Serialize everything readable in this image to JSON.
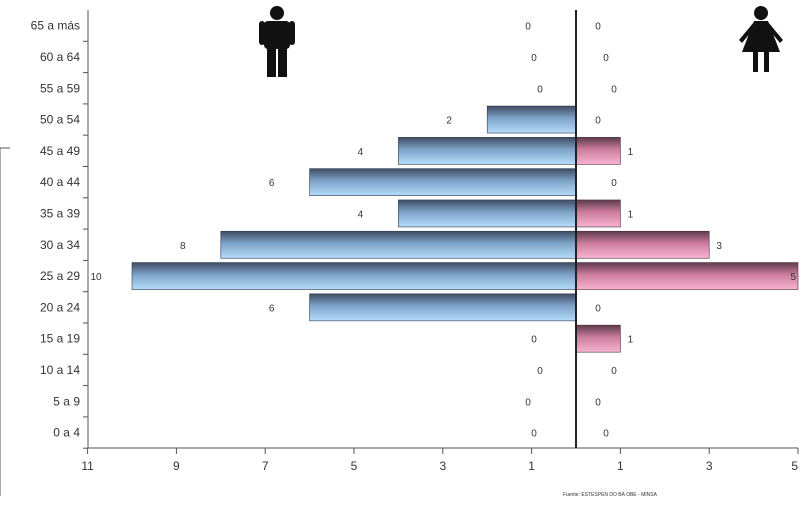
{
  "chart_data": {
    "type": "bar",
    "orientation": "horizontal",
    "categories": [
      "65 a más",
      "60 a 64",
      "55 a 59",
      "50 a 54",
      "45 a 49",
      "40 a 44",
      "35 a 39",
      "30 a 34",
      "25 a 29",
      "20 a 24",
      "15 a 19",
      "10 a 14",
      "5 a 9",
      "0 a 4"
    ],
    "series": [
      {
        "values": [
          0,
          0,
          0,
          2,
          4,
          6,
          4,
          8,
          10,
          6,
          0,
          0,
          0,
          0
        ],
        "color": "#8fb8e0"
      },
      {
        "values": [
          0,
          0,
          0,
          0,
          1,
          0,
          1,
          3,
          5,
          0,
          1,
          0,
          0,
          0
        ],
        "color": "#e38aac"
      }
    ],
    "xticks": [
      "11",
      "9",
      "7",
      "5",
      "3",
      "1",
      "1",
      "3",
      "5"
    ],
    "xlim_left": 11,
    "xlim_right": 5,
    "source_note": "Fuente: ESTESPEN DO BA OBE - MINSA",
    "icons": {
      "left": "male-figure-icon",
      "right": "female-figure-icon"
    }
  }
}
